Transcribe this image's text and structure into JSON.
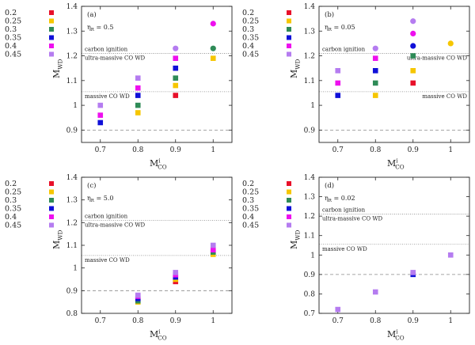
{
  "colors": {
    "0.2": "#e8102a",
    "0.25": "#f6c600",
    "0.3": "#2e8b57",
    "0.35": "#1010d8",
    "0.4": "#ee10ee",
    "0.45": "#b57cf0"
  },
  "chart_data": [
    {
      "type": "scatter",
      "panel_label": "(a)",
      "eta_label": "ηR = 0.5",
      "xlabel": "M_CO^i",
      "ylabel": "M_WD",
      "xlim": [
        0.65,
        1.05
      ],
      "ylim": [
        0.85,
        1.4
      ],
      "xticks": [
        "0.7",
        "0.8",
        "0.9",
        "1"
      ],
      "yticks": [
        "0.9",
        "1",
        "1.1",
        "1.2",
        "1.3",
        "1.4"
      ],
      "legend": [
        "0.2",
        "0.25",
        "0.3",
        "0.35",
        "0.4",
        "0.45"
      ],
      "hlines": [
        {
          "y": 1.21,
          "label": "carbon ignition",
          "style": "dotted",
          "label_pos": "above"
        },
        {
          "y": 1.21,
          "label": "ultra-massive CO WD",
          "style": "dotted",
          "label_pos": "below"
        },
        {
          "y": 1.055,
          "label": "massive CO WD",
          "style": "dotted",
          "label_pos": "below"
        },
        {
          "y": 0.9,
          "label": "",
          "style": "dashed"
        }
      ],
      "points": [
        {
          "series": "0.35",
          "x": 0.7,
          "y": 0.93,
          "marker": "square"
        },
        {
          "series": "0.4",
          "x": 0.7,
          "y": 0.96,
          "marker": "square"
        },
        {
          "series": "0.45",
          "x": 0.7,
          "y": 1.0,
          "marker": "square"
        },
        {
          "series": "0.25",
          "x": 0.8,
          "y": 0.97,
          "marker": "square"
        },
        {
          "series": "0.3",
          "x": 0.8,
          "y": 1.0,
          "marker": "square"
        },
        {
          "series": "0.35",
          "x": 0.8,
          "y": 1.04,
          "marker": "square"
        },
        {
          "series": "0.4",
          "x": 0.8,
          "y": 1.07,
          "marker": "square"
        },
        {
          "series": "0.45",
          "x": 0.8,
          "y": 1.11,
          "marker": "square"
        },
        {
          "series": "0.2",
          "x": 0.9,
          "y": 1.04,
          "marker": "square"
        },
        {
          "series": "0.25",
          "x": 0.9,
          "y": 1.08,
          "marker": "square"
        },
        {
          "series": "0.3",
          "x": 0.9,
          "y": 1.11,
          "marker": "square"
        },
        {
          "series": "0.35",
          "x": 0.9,
          "y": 1.15,
          "marker": "square"
        },
        {
          "series": "0.4",
          "x": 0.9,
          "y": 1.19,
          "marker": "square"
        },
        {
          "series": "0.45",
          "x": 0.9,
          "y": 1.23,
          "marker": "circle"
        },
        {
          "series": "0.25",
          "x": 1.0,
          "y": 1.19,
          "marker": "square"
        },
        {
          "series": "0.3",
          "x": 1.0,
          "y": 1.23,
          "marker": "circle"
        },
        {
          "series": "0.4",
          "x": 1.0,
          "y": 1.33,
          "marker": "circle"
        }
      ]
    },
    {
      "type": "scatter",
      "panel_label": "(b)",
      "eta_label": "ηR = 0.05",
      "xlabel": "M_CO^i",
      "ylabel": "M_WD",
      "xlim": [
        0.65,
        1.05
      ],
      "ylim": [
        0.85,
        1.4
      ],
      "xticks": [
        "0.7",
        "0.8",
        "0.9",
        "1"
      ],
      "yticks": [
        "0.9",
        "1",
        "1.1",
        "1.2",
        "1.3",
        "1.4"
      ],
      "legend": [
        "0.2",
        "0.25",
        "0.3",
        "0.35",
        "0.4",
        "0.45"
      ],
      "hlines": [
        {
          "y": 1.21,
          "label": "carbon ignition",
          "style": "dotted",
          "label_pos": "above"
        },
        {
          "y": 1.21,
          "label": "ultra-massive CO WD",
          "style": "dotted",
          "label_pos": "below-right"
        },
        {
          "y": 1.055,
          "label": "massive CO WD",
          "style": "dotted",
          "label_pos": "below-right"
        },
        {
          "y": 0.9,
          "label": "",
          "style": "dashed"
        }
      ],
      "points": [
        {
          "series": "0.35",
          "x": 0.7,
          "y": 1.04,
          "marker": "square"
        },
        {
          "series": "0.4",
          "x": 0.7,
          "y": 1.09,
          "marker": "square"
        },
        {
          "series": "0.45",
          "x": 0.7,
          "y": 1.14,
          "marker": "square"
        },
        {
          "series": "0.25",
          "x": 0.8,
          "y": 1.04,
          "marker": "square"
        },
        {
          "series": "0.3",
          "x": 0.8,
          "y": 1.09,
          "marker": "square"
        },
        {
          "series": "0.35",
          "x": 0.8,
          "y": 1.14,
          "marker": "square"
        },
        {
          "series": "0.4",
          "x": 0.8,
          "y": 1.19,
          "marker": "square"
        },
        {
          "series": "0.45",
          "x": 0.8,
          "y": 1.23,
          "marker": "circle"
        },
        {
          "series": "0.2",
          "x": 0.9,
          "y": 1.09,
          "marker": "square"
        },
        {
          "series": "0.25",
          "x": 0.9,
          "y": 1.14,
          "marker": "square"
        },
        {
          "series": "0.3",
          "x": 0.9,
          "y": 1.2,
          "marker": "square"
        },
        {
          "series": "0.35",
          "x": 0.9,
          "y": 1.24,
          "marker": "circle"
        },
        {
          "series": "0.4",
          "x": 0.9,
          "y": 1.29,
          "marker": "circle"
        },
        {
          "series": "0.45",
          "x": 0.9,
          "y": 1.34,
          "marker": "circle"
        },
        {
          "series": "0.25",
          "x": 1.0,
          "y": 1.25,
          "marker": "circle"
        }
      ]
    },
    {
      "type": "scatter",
      "panel_label": "(c)",
      "eta_label": "ηR = 5.0",
      "xlabel": "M_CO^i",
      "ylabel": "M_WD",
      "xlim": [
        0.65,
        1.05
      ],
      "ylim": [
        0.8,
        1.4
      ],
      "xticks": [
        "0.7",
        "0.8",
        "0.9",
        "1"
      ],
      "yticks": [
        "0.8",
        "0.9",
        "1",
        "1.1",
        "1.2",
        "1.3",
        "1.4"
      ],
      "legend": [
        "0.2",
        "0.25",
        "0.3",
        "0.35",
        "0.4",
        "0.45"
      ],
      "hlines": [
        {
          "y": 1.21,
          "label": "carbon ignition",
          "style": "dotted",
          "label_pos": "above"
        },
        {
          "y": 1.21,
          "label": "ultra-massive CO WD",
          "style": "dotted",
          "label_pos": "below"
        },
        {
          "y": 1.055,
          "label": "massive CO WD",
          "style": "dotted",
          "label_pos": "below"
        },
        {
          "y": 0.9,
          "label": "",
          "style": "dashed"
        }
      ],
      "points": [
        {
          "series": "0.25",
          "x": 0.8,
          "y": 0.85,
          "marker": "square"
        },
        {
          "series": "0.3",
          "x": 0.8,
          "y": 0.855,
          "marker": "square"
        },
        {
          "series": "0.35",
          "x": 0.8,
          "y": 0.865,
          "marker": "square"
        },
        {
          "series": "0.4",
          "x": 0.8,
          "y": 0.875,
          "marker": "square"
        },
        {
          "series": "0.45",
          "x": 0.8,
          "y": 0.88,
          "marker": "square"
        },
        {
          "series": "0.2",
          "x": 0.9,
          "y": 0.94,
          "marker": "square"
        },
        {
          "series": "0.25",
          "x": 0.9,
          "y": 0.95,
          "marker": "square"
        },
        {
          "series": "0.35",
          "x": 0.9,
          "y": 0.96,
          "marker": "square"
        },
        {
          "series": "0.4",
          "x": 0.9,
          "y": 0.97,
          "marker": "square"
        },
        {
          "series": "0.45",
          "x": 0.9,
          "y": 0.98,
          "marker": "square"
        },
        {
          "series": "0.25",
          "x": 1.0,
          "y": 1.06,
          "marker": "square"
        },
        {
          "series": "0.3",
          "x": 1.0,
          "y": 1.07,
          "marker": "square"
        },
        {
          "series": "0.4",
          "x": 1.0,
          "y": 1.08,
          "marker": "square"
        },
        {
          "series": "0.45",
          "x": 1.0,
          "y": 1.1,
          "marker": "square"
        }
      ]
    },
    {
      "type": "scatter",
      "panel_label": "(d)",
      "eta_label": "ηR = 0.02",
      "xlabel": "M_CO^i",
      "ylabel": "M_WD",
      "xlim": [
        0.65,
        1.05
      ],
      "ylim": [
        0.7,
        1.4
      ],
      "xticks": [
        "0.7",
        "0.8",
        "0.9",
        "1"
      ],
      "yticks": [
        "0.7",
        "0.8",
        "0.9",
        "1",
        "1.1",
        "1.2",
        "1.3",
        "1.4"
      ],
      "legend": [
        "0.2",
        "0.25",
        "0.3",
        "0.35",
        "0.4",
        "0.45"
      ],
      "hlines": [
        {
          "y": 1.21,
          "label": "carbon ignition",
          "style": "dotted",
          "label_pos": "above"
        },
        {
          "y": 1.21,
          "label": "ultra-massive CO WD",
          "style": "dotted",
          "label_pos": "below"
        },
        {
          "y": 1.055,
          "label": "massive CO WD",
          "style": "dotted",
          "label_pos": "below"
        },
        {
          "y": 0.9,
          "label": "",
          "style": "dashed"
        }
      ],
      "points": [
        {
          "series": "0.45",
          "x": 0.7,
          "y": 0.72,
          "marker": "square"
        },
        {
          "series": "0.45",
          "x": 0.8,
          "y": 0.81,
          "marker": "square"
        },
        {
          "series": "0.35",
          "x": 0.9,
          "y": 0.9,
          "marker": "square"
        },
        {
          "series": "0.45",
          "x": 0.9,
          "y": 0.91,
          "marker": "square"
        },
        {
          "series": "0.45",
          "x": 1.0,
          "y": 1.0,
          "marker": "square"
        }
      ]
    }
  ]
}
